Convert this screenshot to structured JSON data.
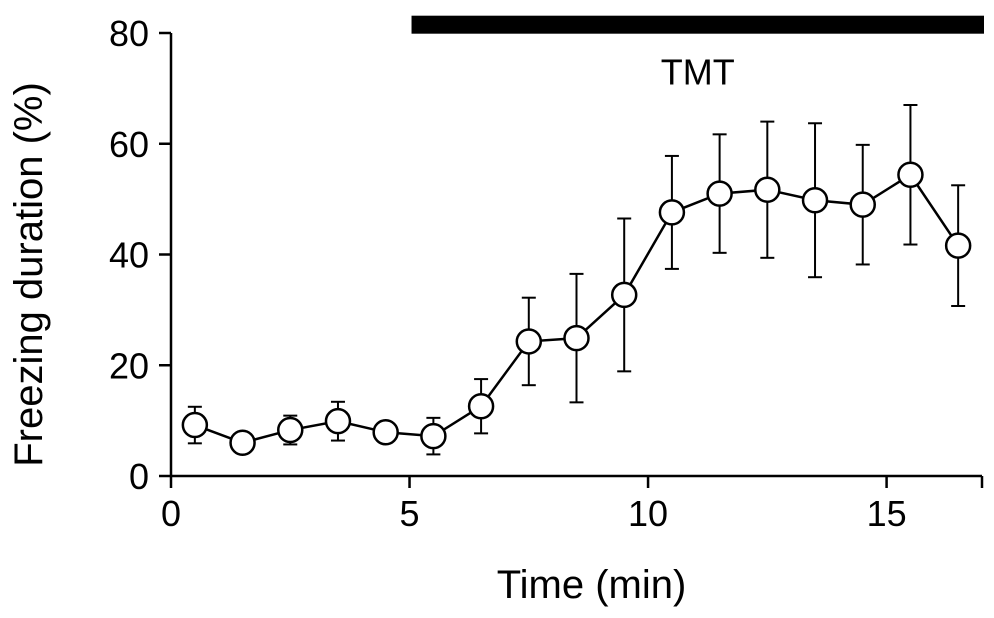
{
  "chart_data": {
    "type": "scatter",
    "title": "",
    "xlabel": "Time (min)",
    "ylabel": "Freezing duration (%)",
    "xlim": [
      0,
      17
    ],
    "ylim": [
      0,
      80
    ],
    "x_ticks": [
      0,
      5,
      10,
      15
    ],
    "y_ticks": [
      0,
      20,
      40,
      60,
      80
    ],
    "grid": false,
    "legend": "none",
    "marker": "open-circle",
    "line_color": "#000000",
    "marker_fill": "#ffffff",
    "series": [
      {
        "x": [
          0.5,
          1.5,
          2.5,
          3.5,
          4.5,
          5.5,
          6.5,
          7.5,
          8.5,
          9.5,
          10.5,
          11.5,
          12.5,
          13.5,
          14.5,
          15.5,
          16.5
        ],
        "y": [
          9.2,
          6.0,
          8.3,
          9.9,
          7.9,
          7.2,
          12.6,
          24.3,
          24.9,
          32.7,
          47.6,
          51.0,
          51.7,
          49.8,
          49.0,
          54.4,
          41.6
        ],
        "err": [
          3.3,
          0.0,
          2.6,
          3.5,
          0.0,
          3.3,
          4.9,
          7.9,
          11.6,
          13.8,
          10.2,
          10.7,
          12.3,
          13.9,
          10.8,
          12.6,
          10.9
        ]
      }
    ],
    "annotations": [
      {
        "type": "bar",
        "label": "TMT",
        "x_start": 5,
        "x_end": 17,
        "y": 81.5
      }
    ]
  }
}
